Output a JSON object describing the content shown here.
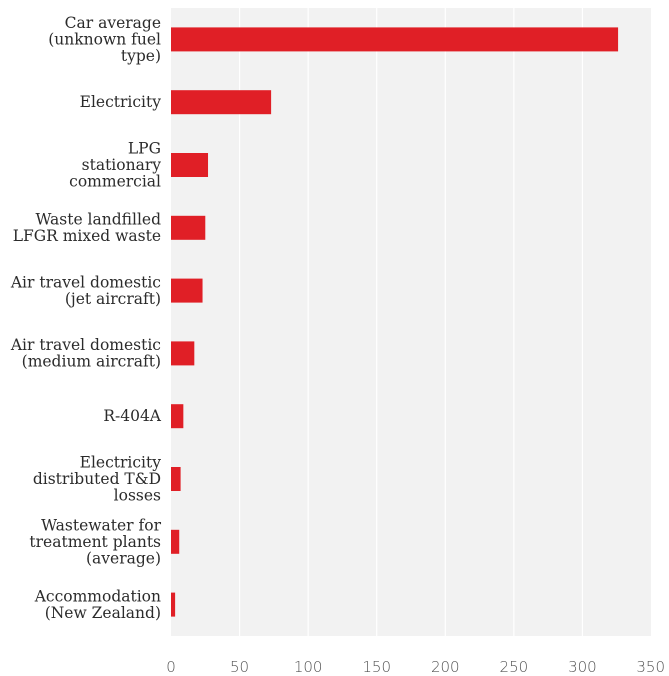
{
  "chart_data": {
    "type": "bar",
    "orientation": "horizontal",
    "categories": [
      [
        "Car average",
        "(unknown fuel",
        "type)"
      ],
      [
        "Electricity"
      ],
      [
        "LPG",
        "stationary",
        "commercial"
      ],
      [
        "Waste landfilled",
        "LFGR mixed waste"
      ],
      [
        "Air travel domestic",
        "(jet aircraft)"
      ],
      [
        "Air travel domestic",
        "(medium aircraft)"
      ],
      [
        "R-404A"
      ],
      [
        "Electricity",
        "distributed T&D",
        "losses"
      ],
      [
        "Wastewater for",
        "treatment plants",
        "(average)"
      ],
      [
        "Accommodation",
        "(New Zealand)"
      ]
    ],
    "values": [
      326,
      73,
      27,
      25,
      23,
      17,
      9,
      7,
      6,
      3
    ],
    "xlim": [
      0,
      350
    ],
    "xticks": [
      "0",
      "50",
      "100",
      "150",
      "200",
      "250",
      "300",
      "350"
    ],
    "grid": true,
    "title": "",
    "xlabel": "",
    "ylabel": "",
    "colors": {
      "bar": "#e01f26",
      "plot_background": "#f2f2f2",
      "gridline": "#ffffff",
      "label_text": "#2b2b2b",
      "tick_text": "#555555"
    }
  }
}
